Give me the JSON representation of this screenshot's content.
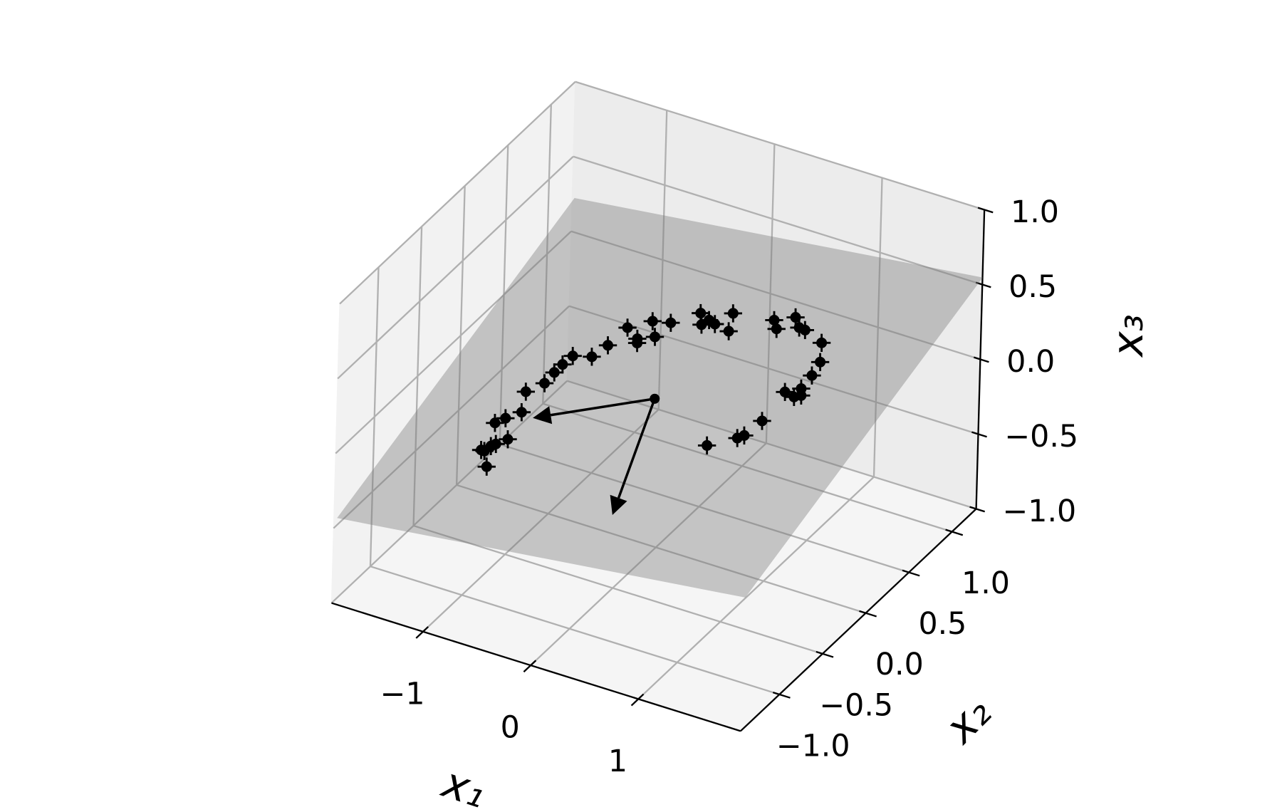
{
  "chart_data": {
    "type": "scatter3d",
    "xlabel": "x₁",
    "ylabel": "x₂",
    "zlabel": "x₃",
    "xlim": [
      -1.85,
      1.95
    ],
    "ylim": [
      -1.45,
      1.28
    ],
    "zlim": [
      -1,
      1
    ],
    "xticks": [
      {
        "value": -1,
        "label": "−1"
      },
      0,
      1
    ],
    "yticks": [
      {
        "value": -1,
        "label": "−1.0"
      },
      {
        "value": -0.5,
        "label": "−0.5"
      },
      {
        "value": 0,
        "label": "0.0"
      },
      0.5,
      {
        "value": 1,
        "label": "1.0"
      }
    ],
    "zticks": [
      {
        "value": -1,
        "label": "−1.0"
      },
      {
        "value": -0.5,
        "label": "−0.5"
      },
      {
        "value": 0,
        "label": "0.0"
      },
      0.5,
      {
        "value": 1,
        "label": "1.0"
      }
    ],
    "grid": true,
    "color": "#000000",
    "surface_color": "#7a7a7a",
    "x": [
      -0.99,
      -1.1,
      -1.08,
      -1.13,
      -1.05,
      -0.98,
      -1.18,
      -1.13,
      -1.03,
      -1.12,
      -1.02,
      -1.01,
      -0.99,
      -0.96,
      -0.8,
      -0.74,
      -0.68,
      -0.51,
      -0.54,
      -0.52,
      -0.41,
      -0.36,
      -0.18,
      -0.1,
      -0.07,
      0.0,
      0.16,
      0.08,
      0.46,
      0.53,
      0.61,
      0.7,
      0.77,
      0.98,
      1.08,
      1.1,
      1.09,
      1.08,
      0.98,
      1.13,
      0.97,
      0.91,
      0.87,
      0.67
    ],
    "y": [
      -0.76,
      -0.65,
      -0.6,
      -0.65,
      -0.58,
      -0.53,
      -0.43,
      -0.37,
      -0.31,
      -0.15,
      -0.06,
      0.04,
      0.11,
      0.19,
      0.21,
      0.32,
      0.47,
      0.37,
      0.41,
      0.56,
      0.45,
      0.57,
      0.69,
      0.6,
      0.65,
      0.63,
      0.59,
      0.74,
      0.74,
      0.68,
      0.8,
      0.73,
      0.71,
      0.64,
      0.5,
      0.38,
      0.27,
      0.2,
      0.22,
      0.22,
      -0.03,
      -0.16,
      -0.19,
      -0.29
    ],
    "z": [
      -0.27,
      -0.25,
      -0.24,
      -0.25,
      -0.23,
      -0.21,
      -0.2,
      -0.19,
      -0.16,
      -0.13,
      -0.1,
      -0.08,
      -0.06,
      -0.04,
      -0.02,
      0.01,
      0.06,
      0.05,
      0.05,
      0.09,
      0.07,
      0.11,
      0.15,
      0.14,
      0.15,
      0.15,
      0.16,
      0.18,
      0.22,
      0.21,
      0.24,
      0.23,
      0.24,
      0.24,
      0.21,
      0.19,
      0.16,
      0.14,
      0.14,
      0.15,
      0.08,
      0.04,
      0.03,
      -0.01
    ],
    "surface": {
      "x": [
        -1.89,
        1.89,
        1.89,
        -1.89
      ],
      "y": [
        -1.36,
        -1.36,
        1.36,
        1.36
      ],
      "z": [
        -0.49,
        -0.17,
        0.49,
        0.17
      ]
    },
    "arrows": [
      {
        "start": [
          -0.04,
          -0.01,
          -0.01
        ],
        "end": [
          -0.91,
          -0.33,
          -0.16
        ]
      },
      {
        "start": [
          -0.04,
          -0.01,
          -0.01
        ],
        "end": [
          0.32,
          -0.94,
          -0.2
        ]
      }
    ]
  }
}
